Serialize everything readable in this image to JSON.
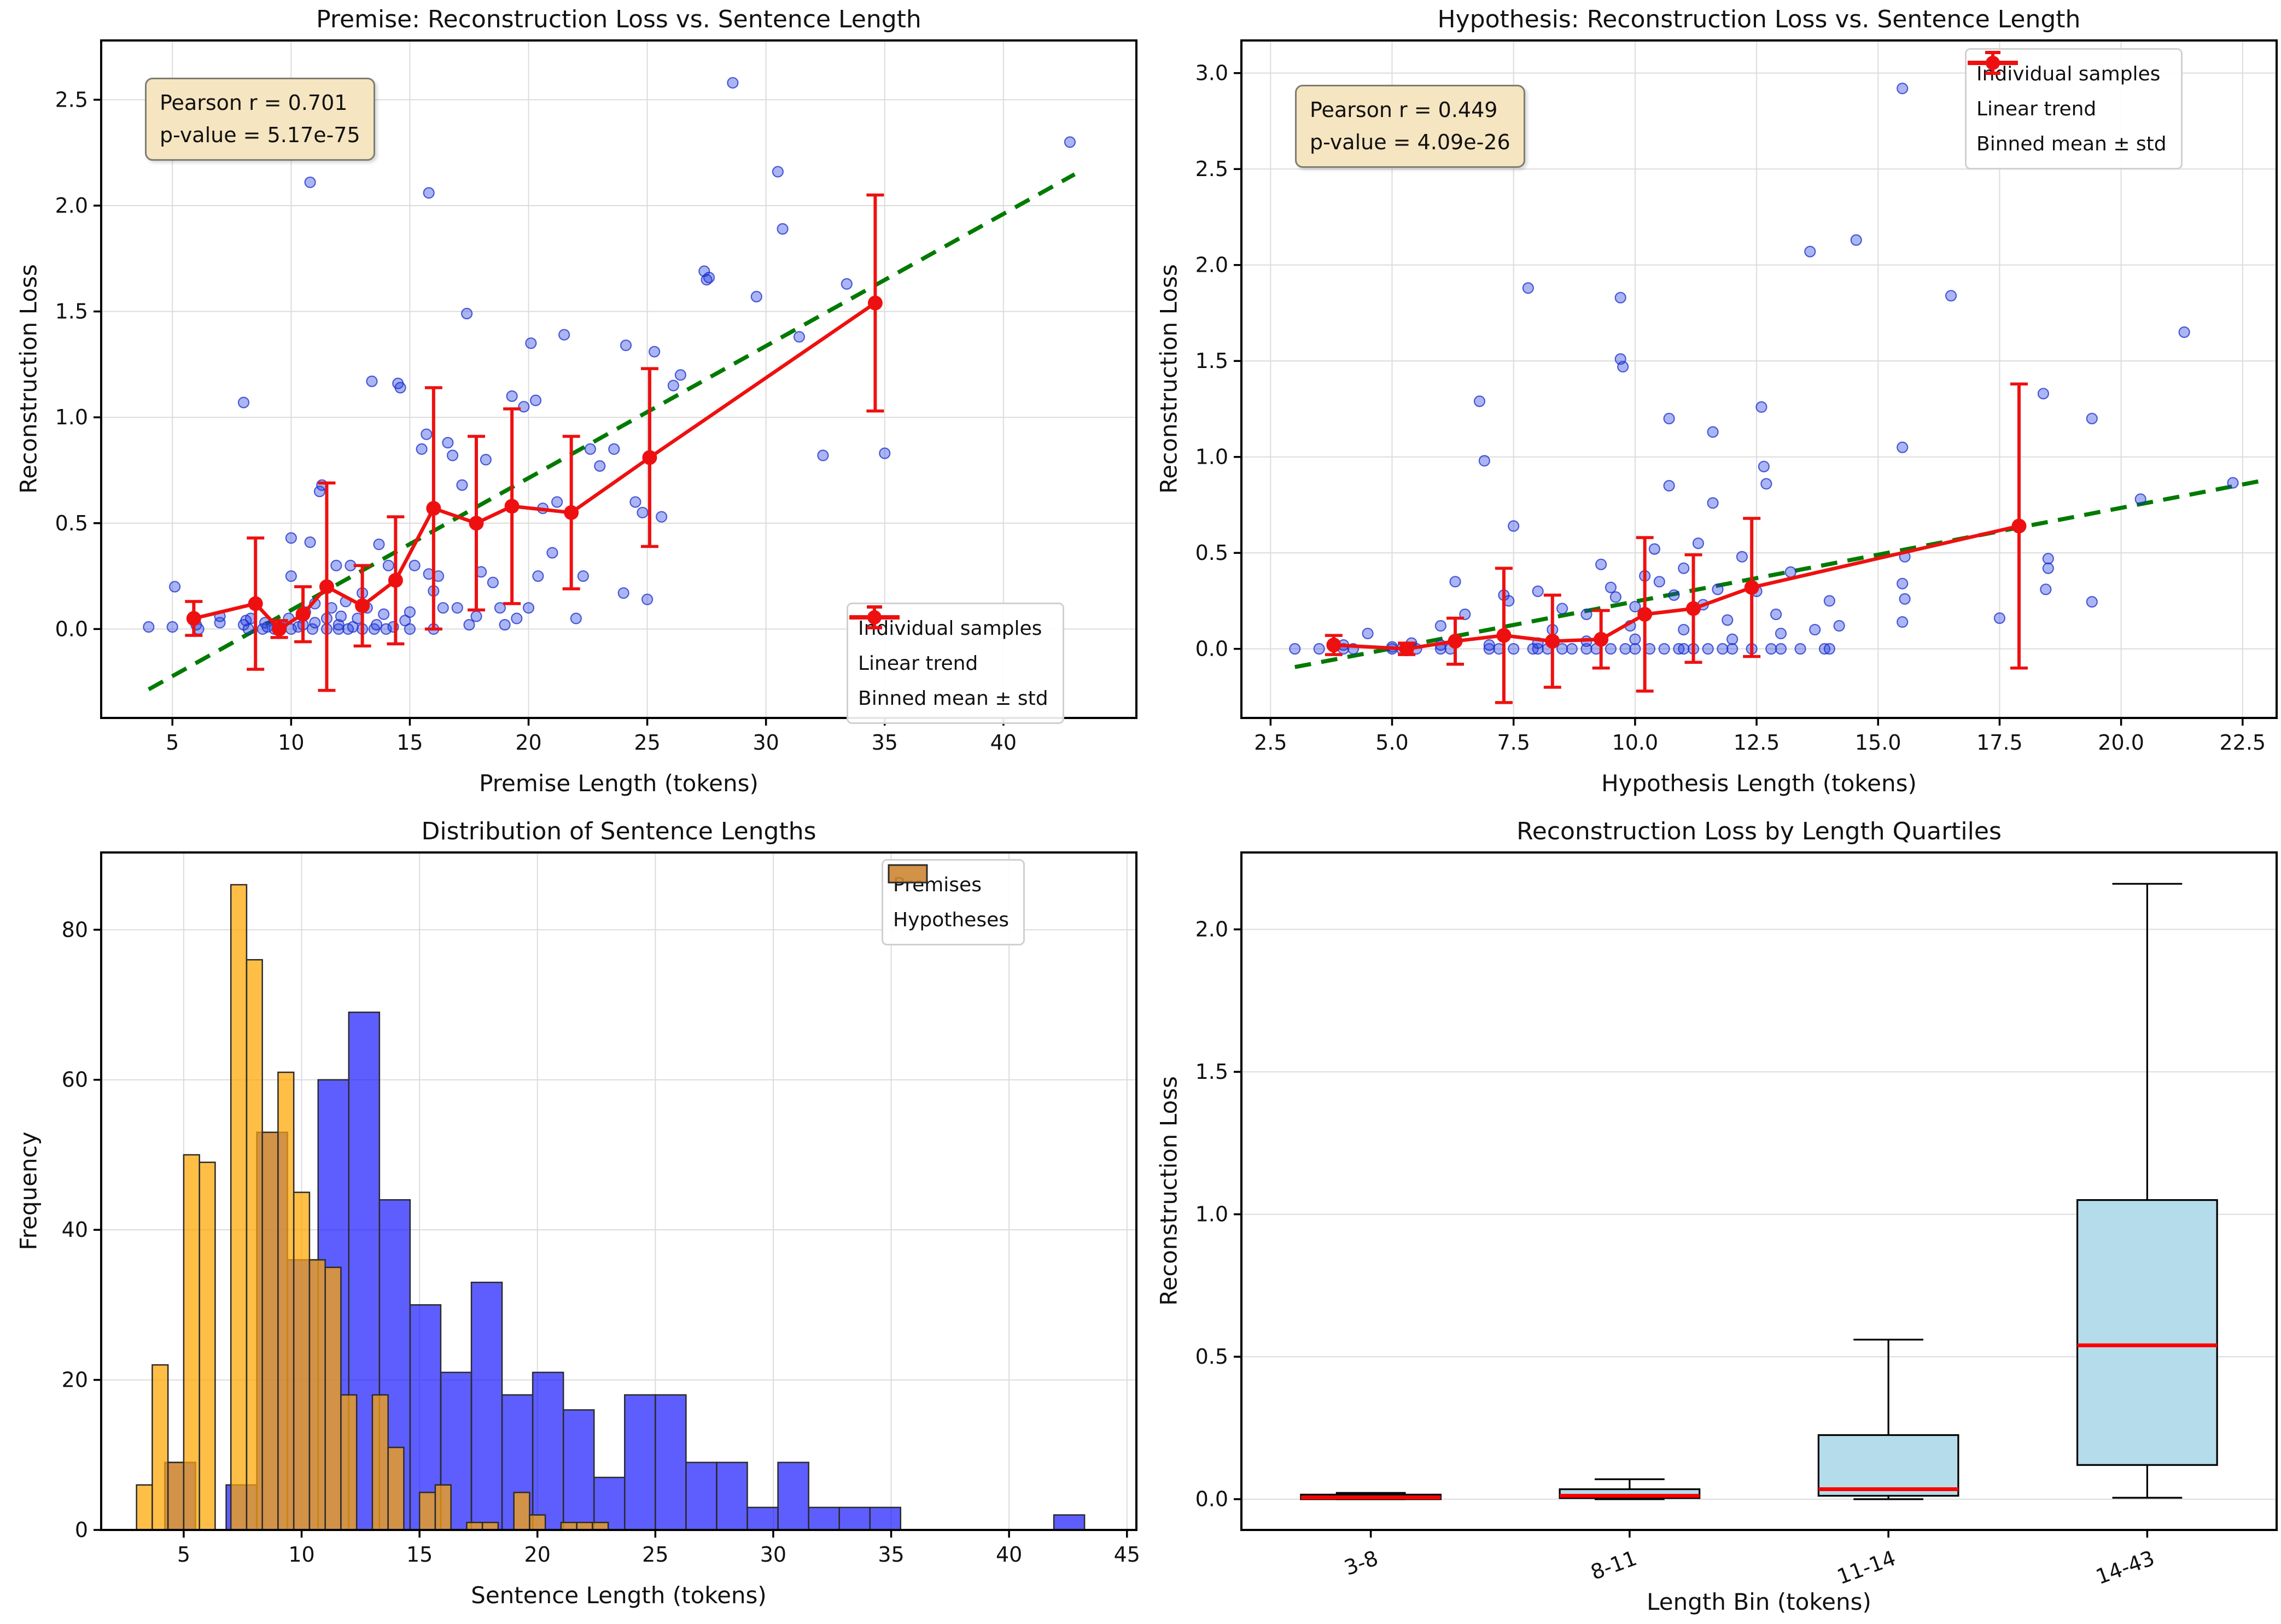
{
  "colors": {
    "sample_fill": "rgba(35,60,225,0.38)",
    "sample_edge": "rgba(25,45,200,0.75)",
    "trend_green": "#007a00",
    "binned_red": "#ee1010",
    "premises_blue": "rgba(15,15,255,0.67)",
    "hypotheses_orange": "rgba(255,166,0,0.72)",
    "hist_edge": "#2b2b2b",
    "box_fill": "#b4dcea",
    "box_edge": "#000000",
    "median_red": "#ff0000",
    "grid": "#dcdcdc",
    "spine": "#000000",
    "annotation_bg": "#f5e5c0",
    "annotation_border": "#7d7d72"
  },
  "chart_data": [
    {
      "type": "scatter",
      "title": "Premise: Reconstruction Loss vs. Sentence Length",
      "xlabel": "Premise Length (tokens)",
      "ylabel": "Reconstruction Loss",
      "xlim": [
        2.0,
        45.6
      ],
      "ylim": [
        -0.42,
        2.78
      ],
      "xticks": [
        5,
        10,
        15,
        20,
        25,
        30,
        35,
        40
      ],
      "xtick_labels": [
        "5",
        "10",
        "15",
        "20",
        "25",
        "30",
        "35",
        "40"
      ],
      "yticks": [
        0.0,
        0.5,
        1.0,
        1.5,
        2.0,
        2.5
      ],
      "ytick_labels": [
        "0.0",
        "0.5",
        "1.0",
        "1.5",
        "2.0",
        "2.5"
      ],
      "annotation": {
        "lines": [
          "Pearson r = 0.701",
          "p-value = 5.17e-75"
        ]
      },
      "legend": {
        "position": "bottom-right",
        "entries": [
          {
            "label": "Individual samples",
            "marker": "sample"
          },
          {
            "label": "Linear trend",
            "marker": "dash"
          },
          {
            "label": "Binned mean ± std",
            "marker": "errbar"
          }
        ]
      },
      "points": [
        [
          4,
          0.01
        ],
        [
          5,
          0.01
        ],
        [
          5.1,
          0.2
        ],
        [
          6,
          0.02
        ],
        [
          6.1,
          0
        ],
        [
          7,
          0.03
        ],
        [
          7,
          0.06
        ],
        [
          8,
          1.07
        ],
        [
          8,
          0.02
        ],
        [
          8.1,
          0.04
        ],
        [
          8.2,
          0
        ],
        [
          8.3,
          0.05
        ],
        [
          8.8,
          0
        ],
        [
          8.9,
          0.03
        ],
        [
          9,
          0.01
        ],
        [
          9.3,
          0
        ],
        [
          9.5,
          0.02
        ],
        [
          9.9,
          0.05
        ],
        [
          10,
          0
        ],
        [
          10,
          0.25
        ],
        [
          10,
          0.43
        ],
        [
          10.8,
          2.11
        ],
        [
          10.3,
          0.01
        ],
        [
          10.5,
          0.02
        ],
        [
          10.6,
          0.08
        ],
        [
          10.8,
          0.41
        ],
        [
          10.9,
          0
        ],
        [
          11,
          0.03
        ],
        [
          11,
          0.12
        ],
        [
          11.2,
          0.65
        ],
        [
          11.3,
          0.68
        ],
        [
          11.5,
          0
        ],
        [
          11.5,
          0.05
        ],
        [
          11.7,
          0.1
        ],
        [
          11.9,
          0.3
        ],
        [
          12,
          0
        ],
        [
          12,
          0.02
        ],
        [
          12.1,
          0.06
        ],
        [
          12.3,
          0.13
        ],
        [
          12.4,
          0
        ],
        [
          12.5,
          0.3
        ],
        [
          12.6,
          0.01
        ],
        [
          12.8,
          0.05
        ],
        [
          13,
          0
        ],
        [
          13,
          0.17
        ],
        [
          13.2,
          0.1
        ],
        [
          13.4,
          1.17
        ],
        [
          13.5,
          0
        ],
        [
          13.6,
          0.02
        ],
        [
          13.7,
          0.4
        ],
        [
          13.9,
          0.07
        ],
        [
          14,
          0
        ],
        [
          14.1,
          0.3
        ],
        [
          14.3,
          0.01
        ],
        [
          14.5,
          1.16
        ],
        [
          14.6,
          1.14
        ],
        [
          14.8,
          0.04
        ],
        [
          15,
          0
        ],
        [
          15,
          0.08
        ],
        [
          15.2,
          0.3
        ],
        [
          15.8,
          2.06
        ],
        [
          15.5,
          0.85
        ],
        [
          15.7,
          0.92
        ],
        [
          15.8,
          0.26
        ],
        [
          16,
          0
        ],
        [
          16,
          0.18
        ],
        [
          16.2,
          0.25
        ],
        [
          16.4,
          0.1
        ],
        [
          16.6,
          0.88
        ],
        [
          16.8,
          0.82
        ],
        [
          17,
          0.1
        ],
        [
          17.2,
          0.68
        ],
        [
          17.4,
          1.49
        ],
        [
          17.5,
          0.02
        ],
        [
          17.8,
          0.06
        ],
        [
          18,
          0.27
        ],
        [
          18.2,
          0.8
        ],
        [
          18.5,
          0.22
        ],
        [
          18.8,
          0.1
        ],
        [
          19,
          0.02
        ],
        [
          19.3,
          1.1
        ],
        [
          19.5,
          0.05
        ],
        [
          19.8,
          1.05
        ],
        [
          20,
          0.1
        ],
        [
          20.1,
          1.35
        ],
        [
          20.3,
          1.08
        ],
        [
          20.4,
          0.25
        ],
        [
          20.6,
          0.57
        ],
        [
          21,
          0.36
        ],
        [
          21.2,
          0.6
        ],
        [
          21.5,
          1.39
        ],
        [
          22,
          0.05
        ],
        [
          22.3,
          0.25
        ],
        [
          22.6,
          0.85
        ],
        [
          23,
          0.77
        ],
        [
          23.6,
          0.85
        ],
        [
          24,
          0.17
        ],
        [
          24.1,
          1.34
        ],
        [
          24.5,
          0.6
        ],
        [
          24.8,
          0.55
        ],
        [
          25,
          0.14
        ],
        [
          25.3,
          1.31
        ],
        [
          25.6,
          0.53
        ],
        [
          26.1,
          1.15
        ],
        [
          26.4,
          1.2
        ],
        [
          27.4,
          1.69
        ],
        [
          27.5,
          1.65
        ],
        [
          27.6,
          1.66
        ],
        [
          28.6,
          2.58
        ],
        [
          29.6,
          1.57
        ],
        [
          30.5,
          2.16
        ],
        [
          30.7,
          1.89
        ],
        [
          31.4,
          1.38
        ],
        [
          32.4,
          0.82
        ],
        [
          33.4,
          1.63
        ],
        [
          35,
          0.83
        ],
        [
          42.8,
          2.3
        ]
      ],
      "trend": {
        "x": [
          4,
          43
        ],
        "y": [
          -0.285,
          2.148
        ]
      },
      "binned": {
        "x": [
          5.9,
          8.5,
          9.5,
          10.5,
          11.5,
          13.0,
          14.4,
          16.0,
          17.8,
          19.3,
          21.8,
          25.1,
          34.6
        ],
        "mean": [
          0.05,
          0.12,
          0.0,
          0.07,
          0.2,
          0.11,
          0.23,
          0.57,
          0.5,
          0.58,
          0.55,
          0.81,
          1.54
        ],
        "std": [
          0.08,
          0.31,
          0.04,
          0.13,
          0.49,
          0.19,
          0.3,
          0.57,
          0.41,
          0.46,
          0.36,
          0.42,
          0.51
        ]
      }
    },
    {
      "type": "scatter",
      "title": "Hypothesis: Reconstruction Loss vs. Sentence Length",
      "xlabel": "Hypothesis Length (tokens)",
      "ylabel": "Reconstruction Loss",
      "xlim": [
        1.9,
        23.2
      ],
      "ylim": [
        -0.36,
        3.17
      ],
      "xticks": [
        2.5,
        5.0,
        7.5,
        10.0,
        12.5,
        15.0,
        17.5,
        20.0,
        22.5
      ],
      "xtick_labels": [
        "2.5",
        "5.0",
        "7.5",
        "10.0",
        "12.5",
        "15.0",
        "17.5",
        "20.0",
        "22.5"
      ],
      "yticks": [
        0.0,
        0.5,
        1.0,
        1.5,
        2.0,
        2.5,
        3.0
      ],
      "ytick_labels": [
        "0.0",
        "0.5",
        "1.0",
        "1.5",
        "2.0",
        "2.5",
        "3.0"
      ],
      "annotation": {
        "lines": [
          "Pearson r = 0.449",
          "p-value = 4.09e-26"
        ]
      },
      "legend": {
        "position": "top-right",
        "entries": [
          {
            "label": "Individual samples",
            "marker": "sample"
          },
          {
            "label": "Linear trend",
            "marker": "dash"
          },
          {
            "label": "Binned mean ± std",
            "marker": "errbar"
          }
        ]
      },
      "points": [
        [
          3,
          0
        ],
        [
          3.5,
          0
        ],
        [
          4,
          0
        ],
        [
          4,
          0.02
        ],
        [
          4.2,
          0
        ],
        [
          4.5,
          0.08
        ],
        [
          5,
          0
        ],
        [
          5,
          0.01
        ],
        [
          5.2,
          0
        ],
        [
          5.4,
          0.03
        ],
        [
          5.5,
          0
        ],
        [
          6,
          0
        ],
        [
          6,
          0.02
        ],
        [
          6,
          0.12
        ],
        [
          6.2,
          0
        ],
        [
          6.3,
          0.35
        ],
        [
          6.5,
          0.18
        ],
        [
          6.8,
          1.29
        ],
        [
          6.9,
          0.98
        ],
        [
          7,
          0
        ],
        [
          7,
          0.02
        ],
        [
          7.2,
          0
        ],
        [
          7.3,
          0.28
        ],
        [
          7.4,
          0.25
        ],
        [
          7.5,
          0
        ],
        [
          7.5,
          0.64
        ],
        [
          7.8,
          1.88
        ],
        [
          7.9,
          0
        ],
        [
          8,
          0
        ],
        [
          8,
          0.03
        ],
        [
          8,
          0.3
        ],
        [
          8.2,
          0
        ],
        [
          8.3,
          0.1
        ],
        [
          8.5,
          0
        ],
        [
          8.5,
          0.21
        ],
        [
          8.7,
          0
        ],
        [
          9,
          0
        ],
        [
          9,
          0.04
        ],
        [
          9,
          0.18
        ],
        [
          9.2,
          0
        ],
        [
          9.3,
          0.44
        ],
        [
          9.5,
          0
        ],
        [
          9.5,
          0.32
        ],
        [
          9.6,
          0.27
        ],
        [
          9.7,
          1.83
        ],
        [
          9.7,
          1.51
        ],
        [
          9.75,
          1.47
        ],
        [
          9.8,
          0
        ],
        [
          9.9,
          0.12
        ],
        [
          10,
          0
        ],
        [
          10,
          0.05
        ],
        [
          10,
          0.22
        ],
        [
          10.2,
          0.38
        ],
        [
          10.3,
          0
        ],
        [
          10.4,
          0.52
        ],
        [
          10.5,
          0.35
        ],
        [
          10.6,
          0
        ],
        [
          10.7,
          1.2
        ],
        [
          10.7,
          0.85
        ],
        [
          10.8,
          0.28
        ],
        [
          10.9,
          0
        ],
        [
          11,
          0
        ],
        [
          11,
          0.1
        ],
        [
          11,
          0.42
        ],
        [
          11.2,
          0
        ],
        [
          11.3,
          0.55
        ],
        [
          11.4,
          0.23
        ],
        [
          11.5,
          0
        ],
        [
          11.6,
          1.13
        ],
        [
          11.6,
          0.76
        ],
        [
          11.7,
          0.31
        ],
        [
          11.8,
          0
        ],
        [
          11.9,
          0.15
        ],
        [
          12,
          0
        ],
        [
          12,
          0.05
        ],
        [
          12.2,
          0.48
        ],
        [
          12.4,
          0
        ],
        [
          12.5,
          0.3
        ],
        [
          12.6,
          1.26
        ],
        [
          12.65,
          0.95
        ],
        [
          12.7,
          0.86
        ],
        [
          12.8,
          0
        ],
        [
          12.9,
          0.18
        ],
        [
          13,
          0
        ],
        [
          13,
          0.08
        ],
        [
          13.2,
          0.4
        ],
        [
          13.4,
          0
        ],
        [
          13.6,
          2.07
        ],
        [
          13.7,
          0.1
        ],
        [
          13.9,
          0
        ],
        [
          14,
          0
        ],
        [
          14,
          0.25
        ],
        [
          14.2,
          0.12
        ],
        [
          14.55,
          2.13
        ],
        [
          15.5,
          2.92
        ],
        [
          15.5,
          1.05
        ],
        [
          15.55,
          0.48
        ],
        [
          15.5,
          0.34
        ],
        [
          15.55,
          0.26
        ],
        [
          15.5,
          0.14
        ],
        [
          16.5,
          1.84
        ],
        [
          17.5,
          0.16
        ],
        [
          18.4,
          1.33
        ],
        [
          18.5,
          0.47
        ],
        [
          18.5,
          0.42
        ],
        [
          18.45,
          0.31
        ],
        [
          19.4,
          1.2
        ],
        [
          19.4,
          0.245
        ],
        [
          20.4,
          0.78
        ],
        [
          21.3,
          1.65
        ],
        [
          22.3,
          0.865
        ]
      ],
      "trend": {
        "x": [
          3,
          23
        ],
        "y": [
          -0.095,
          0.881
        ]
      },
      "binned": {
        "x": [
          3.8,
          5.3,
          6.3,
          7.3,
          8.3,
          9.3,
          10.2,
          11.2,
          12.4,
          17.9
        ],
        "mean": [
          0.02,
          0.0,
          0.04,
          0.07,
          0.04,
          0.05,
          0.18,
          0.21,
          0.32,
          0.64
        ],
        "std": [
          0.05,
          0.03,
          0.12,
          0.35,
          0.24,
          0.15,
          0.4,
          0.28,
          0.36,
          0.74
        ]
      }
    },
    {
      "type": "bar",
      "title": "Distribution of Sentence Lengths",
      "xlabel": "Sentence Length (tokens)",
      "ylabel": "Frequency",
      "xlim": [
        1.5,
        45.4
      ],
      "ylim": [
        0,
        90.3
      ],
      "xticks": [
        5,
        10,
        15,
        20,
        25,
        30,
        35,
        40,
        45
      ],
      "xtick_labels": [
        "5",
        "10",
        "15",
        "20",
        "25",
        "30",
        "35",
        "40",
        "45"
      ],
      "yticks": [
        0,
        20,
        40,
        60,
        80
      ],
      "ytick_labels": [
        "0",
        "20",
        "40",
        "60",
        "80"
      ],
      "legend": {
        "position": "top-right",
        "entries": [
          {
            "label": "Premises",
            "marker": "swatch-blue"
          },
          {
            "label": "Hypotheses",
            "marker": "swatch-orange"
          }
        ]
      },
      "series": [
        {
          "name": "Premises",
          "bin_start": 4.2,
          "bin_width": 1.3,
          "counts": [
            9,
            0,
            6,
            53,
            36,
            60,
            69,
            44,
            30,
            21,
            33,
            18,
            21,
            16,
            7,
            18,
            18,
            9,
            9,
            3,
            9,
            3,
            3,
            3,
            0,
            0,
            0,
            0,
            0,
            2
          ]
        },
        {
          "name": "Hypotheses",
          "bin_start": 3.0,
          "bin_width": 0.6667,
          "counts": [
            6,
            22,
            9,
            50,
            49,
            0,
            86,
            76,
            53,
            61,
            45,
            36,
            35,
            18,
            0,
            18,
            11,
            0,
            5,
            6,
            0,
            1,
            1,
            0,
            5,
            2,
            0,
            1,
            1,
            1
          ]
        }
      ]
    },
    {
      "type": "box",
      "title": "Reconstruction Loss by Length Quartiles",
      "xlabel": "Length Bin (tokens)",
      "ylabel": "Reconstruction Loss",
      "xlim": [
        0.5,
        4.5
      ],
      "ylim": [
        -0.108,
        2.27
      ],
      "categories": [
        "3-8",
        "8-11",
        "11-14",
        "14-43"
      ],
      "yticks": [
        0.0,
        0.5,
        1.0,
        1.5,
        2.0
      ],
      "ytick_labels": [
        "0.0",
        "0.5",
        "1.0",
        "1.5",
        "2.0"
      ],
      "boxes": [
        {
          "label": "3-8",
          "whislo": 0.0,
          "q1": 0.0,
          "med": 0.006,
          "q3": 0.016,
          "whishi": 0.022
        },
        {
          "label": "8-11",
          "whislo": 0.0,
          "q1": 0.004,
          "med": 0.012,
          "q3": 0.035,
          "whishi": 0.07
        },
        {
          "label": "11-14",
          "whislo": 0.0,
          "q1": 0.012,
          "med": 0.035,
          "q3": 0.225,
          "whishi": 0.56
        },
        {
          "label": "14-43",
          "whislo": 0.005,
          "q1": 0.12,
          "med": 0.54,
          "q3": 1.05,
          "whishi": 2.16
        }
      ]
    }
  ]
}
